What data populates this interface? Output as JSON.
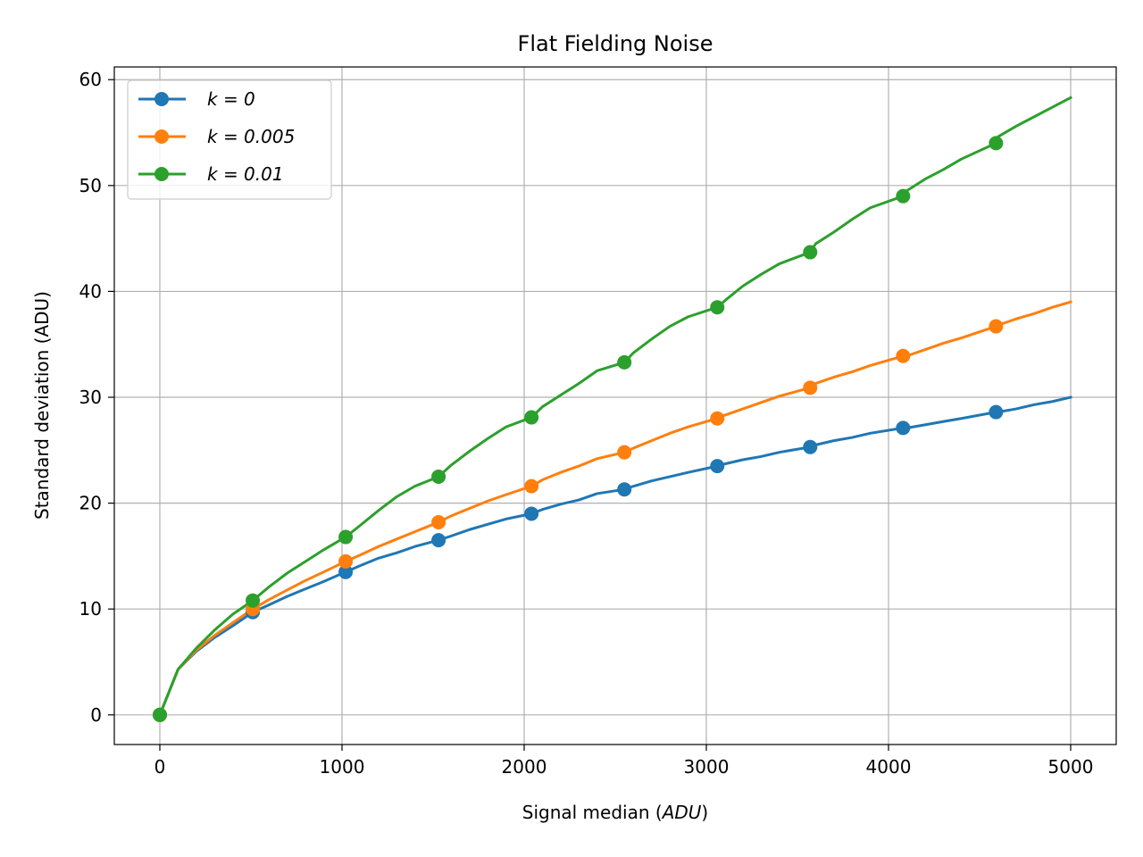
{
  "chart_data": {
    "type": "line",
    "title": "Flat Fielding Noise",
    "xlabel": "Signal median (ADU)",
    "ylabel": "Standard deviation (ADU)",
    "xlim": [
      -250,
      5250
    ],
    "ylim": [
      -2.8,
      61.2
    ],
    "xticks": [
      0,
      1000,
      2000,
      3000,
      4000,
      5000
    ],
    "yticks": [
      0,
      10,
      20,
      30,
      40,
      50,
      60
    ],
    "xtick_labels": [
      "0",
      "1000",
      "2000",
      "3000",
      "4000",
      "5000"
    ],
    "ytick_labels": [
      "0",
      "10",
      "20",
      "30",
      "40",
      "50",
      "60"
    ],
    "grid": true,
    "legend_position": "upper-left",
    "marker_x": [
      0,
      510,
      1020,
      1530,
      2040,
      2550,
      3060,
      3570,
      4080,
      4590
    ],
    "series": [
      {
        "name": "k = 0",
        "color": "#1f77b4",
        "x": [
          0,
          100,
          200,
          300,
          400,
          510,
          600,
          700,
          800,
          900,
          1020,
          1100,
          1200,
          1300,
          1400,
          1530,
          1600,
          1700,
          1800,
          1900,
          2040,
          2100,
          2200,
          2300,
          2400,
          2550,
          2600,
          2700,
          2800,
          2900,
          3060,
          3100,
          3200,
          3300,
          3400,
          3570,
          3600,
          3700,
          3800,
          3900,
          4080,
          4100,
          4200,
          4300,
          4400,
          4590,
          4600,
          4700,
          4800,
          4900,
          5000
        ],
        "values": [
          0.0,
          4.3,
          6.0,
          7.3,
          8.4,
          9.7,
          10.4,
          11.2,
          11.9,
          12.6,
          13.5,
          14.1,
          14.8,
          15.3,
          15.9,
          16.5,
          16.9,
          17.5,
          18.0,
          18.5,
          19.0,
          19.4,
          19.9,
          20.3,
          20.9,
          21.3,
          21.6,
          22.1,
          22.5,
          22.9,
          23.5,
          23.7,
          24.1,
          24.4,
          24.8,
          25.3,
          25.5,
          25.9,
          26.2,
          26.6,
          27.1,
          27.1,
          27.4,
          27.7,
          28.0,
          28.6,
          28.6,
          28.9,
          29.3,
          29.6,
          30.0
        ]
      },
      {
        "name": "k = 0.005",
        "color": "#ff7f0e",
        "x": [
          0,
          100,
          200,
          300,
          400,
          510,
          600,
          700,
          800,
          900,
          1020,
          1100,
          1200,
          1300,
          1400,
          1530,
          1600,
          1700,
          1800,
          1900,
          2040,
          2100,
          2200,
          2300,
          2400,
          2550,
          2600,
          2700,
          2800,
          2900,
          3060,
          3100,
          3200,
          3300,
          3400,
          3570,
          3600,
          3700,
          3800,
          3900,
          4080,
          4100,
          4200,
          4300,
          4400,
          4590,
          4600,
          4700,
          4800,
          4900,
          5000
        ],
        "values": [
          0.0,
          4.3,
          6.1,
          7.5,
          8.7,
          10.0,
          10.9,
          11.8,
          12.7,
          13.5,
          14.5,
          15.1,
          15.9,
          16.6,
          17.3,
          18.2,
          18.8,
          19.5,
          20.2,
          20.8,
          21.6,
          22.2,
          22.9,
          23.5,
          24.2,
          24.8,
          25.2,
          25.9,
          26.6,
          27.2,
          28.0,
          28.3,
          28.9,
          29.5,
          30.1,
          30.9,
          31.3,
          31.9,
          32.4,
          33.0,
          33.9,
          33.9,
          34.5,
          35.1,
          35.6,
          36.7,
          36.8,
          37.4,
          37.9,
          38.5,
          39.0
        ]
      },
      {
        "name": "k = 0.01",
        "color": "#2ca02c",
        "x": [
          0,
          100,
          200,
          300,
          400,
          510,
          600,
          700,
          800,
          900,
          1020,
          1100,
          1200,
          1300,
          1400,
          1530,
          1600,
          1700,
          1800,
          1900,
          2040,
          2100,
          2200,
          2300,
          2400,
          2550,
          2600,
          2700,
          2800,
          2900,
          3060,
          3100,
          3200,
          3300,
          3400,
          3570,
          3600,
          3700,
          3800,
          3900,
          4080,
          4100,
          4200,
          4300,
          4400,
          4590,
          4600,
          4700,
          4800,
          4900,
          5000
        ],
        "values": [
          0.0,
          4.3,
          6.3,
          8.0,
          9.5,
          10.8,
          12.1,
          13.4,
          14.5,
          15.6,
          16.8,
          17.9,
          19.3,
          20.6,
          21.6,
          22.5,
          23.6,
          24.9,
          26.1,
          27.2,
          28.1,
          29.1,
          30.2,
          31.3,
          32.5,
          33.3,
          34.2,
          35.5,
          36.7,
          37.6,
          38.5,
          39.1,
          40.5,
          41.6,
          42.6,
          43.7,
          44.5,
          45.6,
          46.8,
          47.9,
          49.0,
          49.5,
          50.6,
          51.5,
          52.5,
          54.0,
          54.6,
          55.6,
          56.5,
          57.4,
          58.3
        ]
      }
    ],
    "legend": [
      {
        "label": "k = 0",
        "color": "#1f77b4"
      },
      {
        "label": "k = 0.005",
        "color": "#ff7f0e"
      },
      {
        "label": "k = 0.01",
        "color": "#2ca02c"
      }
    ]
  }
}
